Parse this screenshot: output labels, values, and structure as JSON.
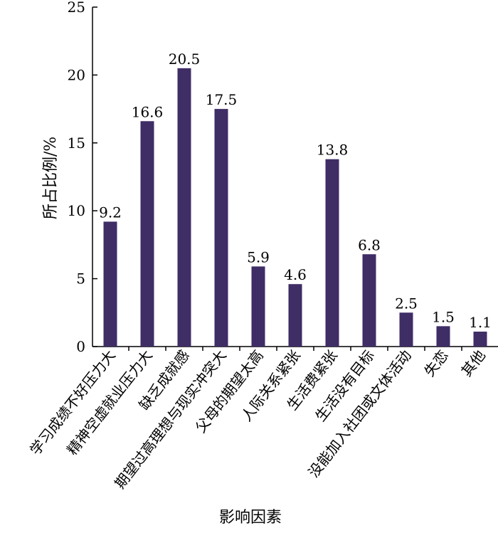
{
  "chart_data": {
    "type": "bar",
    "categories": [
      "学习成绩不好压力大",
      "精神空虚就业压力大",
      "缺乏成就感",
      "期望过高理想与现实冲突大",
      "父母的期望太高",
      "人际关系紧张",
      "生活费紧张",
      "生活没有目标",
      "没能加入社团或文体活动",
      "失恋",
      "其他"
    ],
    "values": [
      9.2,
      16.6,
      20.5,
      17.5,
      5.9,
      4.6,
      13.8,
      6.8,
      2.5,
      1.5,
      1.1
    ],
    "value_labels": [
      "9.2",
      "16.6",
      "20.5",
      "17.5",
      "5.9",
      "4.6",
      "13.8",
      "6.8",
      "2.5",
      "1.5",
      "1.1"
    ],
    "xlabel": "影响因素",
    "ylabel": "所占比例/%",
    "ylim": [
      0,
      25
    ],
    "yticks": [
      0,
      5,
      10,
      15,
      20,
      25
    ],
    "ytick_labels": [
      "0",
      "5",
      "10",
      "15",
      "20",
      "25"
    ],
    "bar_color": "#3f2d66",
    "grid": false,
    "legend": "none"
  }
}
